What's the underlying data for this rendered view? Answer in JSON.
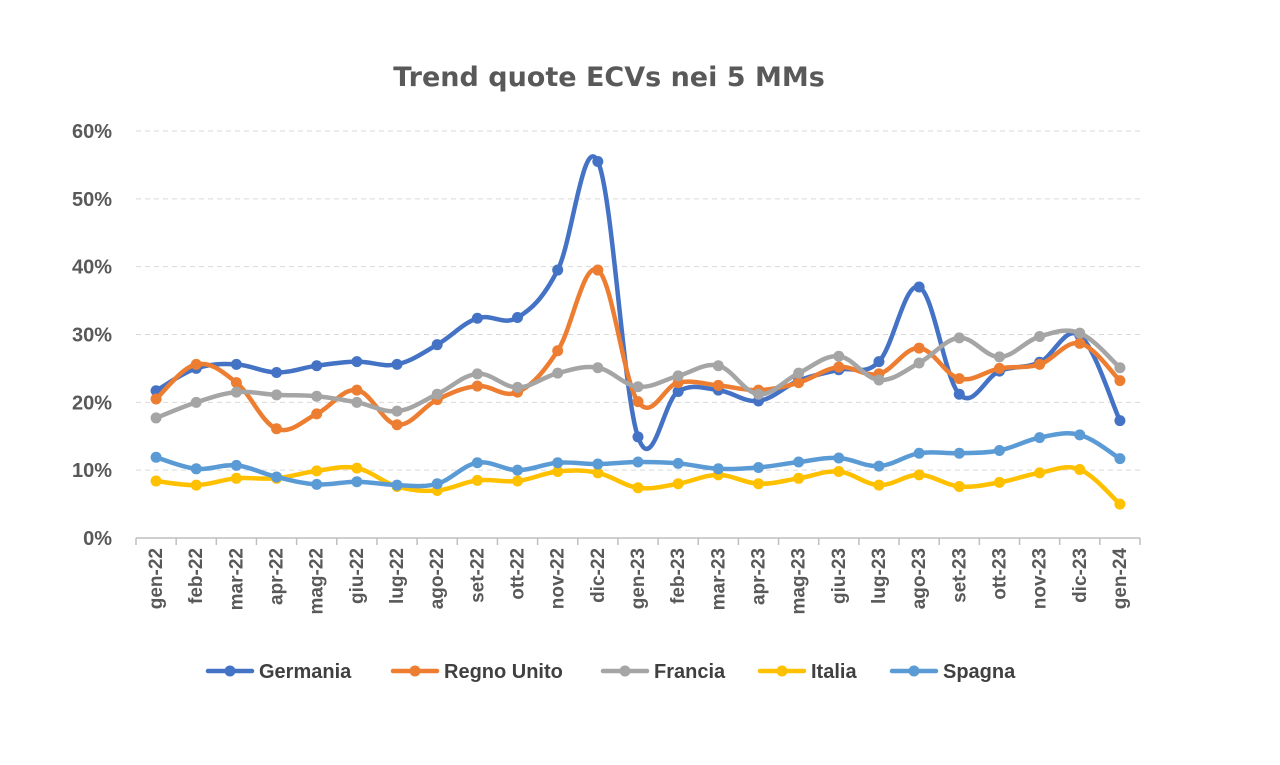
{
  "chart_data": {
    "type": "line",
    "title": "Trend quote ECVs nei 5 MMs",
    "xlabel": "",
    "ylabel": "",
    "ylim": [
      0,
      60
    ],
    "yticks": [
      "0%",
      "10%",
      "20%",
      "30%",
      "40%",
      "50%",
      "60%"
    ],
    "grid": "horizontal dashed",
    "legend_position": "bottom",
    "smooth": true,
    "categories": [
      "gen-22",
      "feb-22",
      "mar-22",
      "apr-22",
      "mag-22",
      "giu-22",
      "lug-22",
      "ago-22",
      "set-22",
      "ott-22",
      "nov-22",
      "dic-22",
      "gen-23",
      "feb-23",
      "mar-23",
      "apr-23",
      "mag-23",
      "giu-23",
      "lug-23",
      "ago-23",
      "set-23",
      "ott-23",
      "nov-23",
      "dic-23",
      "gen-24"
    ],
    "series": [
      {
        "name": "Germania",
        "color": "#4472C4",
        "values": [
          21.7,
          25.0,
          25.6,
          24.4,
          25.4,
          26.0,
          25.6,
          28.5,
          32.4,
          32.5,
          39.5,
          55.5,
          14.9,
          21.6,
          21.8,
          20.2,
          23.2,
          24.8,
          26.0,
          37.0,
          21.2,
          24.6,
          25.9,
          29.9,
          17.3
        ]
      },
      {
        "name": "Regno Unito",
        "color": "#ED7D31",
        "values": [
          20.5,
          25.6,
          22.9,
          16.1,
          18.3,
          21.8,
          16.7,
          20.4,
          22.4,
          21.5,
          27.6,
          39.5,
          20.1,
          22.9,
          22.5,
          21.8,
          22.9,
          25.2,
          24.2,
          28.0,
          23.5,
          25.0,
          25.6,
          28.7,
          23.2
        ]
      },
      {
        "name": "Francia",
        "color": "#A5A5A5",
        "values": [
          17.7,
          20.0,
          21.5,
          21.1,
          20.9,
          20.0,
          18.7,
          21.2,
          24.2,
          22.2,
          24.3,
          25.1,
          22.3,
          23.9,
          25.4,
          21.2,
          24.3,
          26.8,
          23.3,
          25.8,
          29.5,
          26.7,
          29.7,
          30.2,
          25.1
        ]
      },
      {
        "name": "Italia",
        "color": "#FFC000",
        "values": [
          8.4,
          7.8,
          8.8,
          8.8,
          9.9,
          10.3,
          7.6,
          7.0,
          8.5,
          8.4,
          9.8,
          9.6,
          7.4,
          8.0,
          9.3,
          8.0,
          8.8,
          9.8,
          7.8,
          9.3,
          7.6,
          8.2,
          9.6,
          10.1,
          5.0
        ]
      },
      {
        "name": "Spagna",
        "color": "#5B9BD5",
        "values": [
          11.9,
          10.2,
          10.7,
          9.0,
          7.9,
          8.3,
          7.8,
          8.0,
          11.1,
          10.0,
          11.1,
          10.9,
          11.2,
          11.0,
          10.2,
          10.4,
          11.2,
          11.8,
          10.6,
          12.5,
          12.5,
          12.9,
          14.8,
          15.2,
          11.7
        ]
      }
    ]
  }
}
